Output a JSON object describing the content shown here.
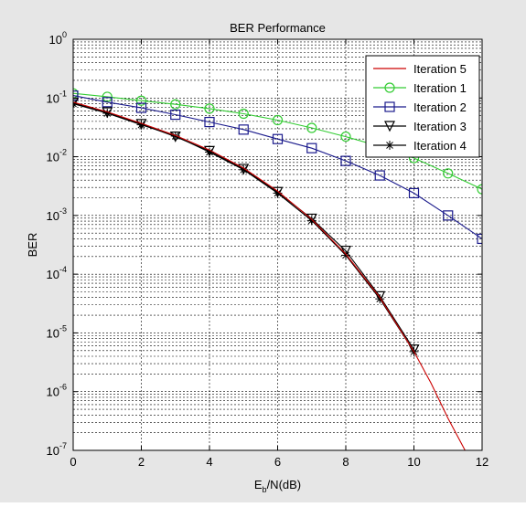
{
  "chart_data": {
    "type": "line",
    "title": "BER Performance",
    "xlabel": "Eb/N(dB)",
    "xlabel_main": "E",
    "xlabel_sub": "b",
    "xlabel_rest": "/N(dB)",
    "ylabel": "BER",
    "xlim": [
      0,
      12
    ],
    "ylim": [
      1e-07,
      1
    ],
    "yscale": "log",
    "grid": true,
    "legend_position": "top-right",
    "x_ticks": [
      "0",
      "2",
      "4",
      "6",
      "8",
      "10",
      "12"
    ],
    "y_tick_base": "10",
    "y_tick_exponents": [
      "0",
      "-1",
      "-2",
      "-3",
      "-4",
      "-5",
      "-6",
      "-7"
    ],
    "colors": {
      "figure_background": "#e6e6e6",
      "axes_background": "#ffffff",
      "iteration_5": "#cc0000",
      "iteration_1": "#33cc33",
      "iteration_2": "#1a1a8c",
      "iteration_3": "#000000",
      "iteration_4": "#000000"
    },
    "series": [
      {
        "name": "Iteration 5",
        "marker": "none",
        "x": [
          0,
          1,
          2,
          3,
          4,
          5,
          6,
          7,
          8,
          9,
          10,
          10.5,
          11,
          11.5
        ],
        "y": [
          0.085,
          0.058,
          0.037,
          0.023,
          0.013,
          0.0064,
          0.0026,
          0.00086,
          0.00022,
          4e-05,
          4.8e-06,
          1.4e-06,
          3.5e-07,
          1e-07
        ]
      },
      {
        "name": "Iteration 1",
        "marker": "circle",
        "x": [
          0,
          1,
          2,
          3,
          4,
          5,
          6,
          7,
          8,
          9,
          10,
          11,
          12
        ],
        "y": [
          0.12,
          0.105,
          0.09,
          0.078,
          0.066,
          0.054,
          0.042,
          0.031,
          0.022,
          0.015,
          0.0095,
          0.0052,
          0.0028
        ]
      },
      {
        "name": "Iteration 2",
        "marker": "square",
        "x": [
          0,
          1,
          2,
          3,
          4,
          5,
          6,
          7,
          8,
          9,
          10,
          11,
          12
        ],
        "y": [
          0.11,
          0.085,
          0.068,
          0.052,
          0.039,
          0.029,
          0.02,
          0.014,
          0.0085,
          0.0048,
          0.0024,
          0.001,
          0.0004
        ]
      },
      {
        "name": "Iteration 3",
        "marker": "triangle-down",
        "x": [
          0,
          1,
          2,
          3,
          4,
          5,
          6,
          7,
          8,
          9,
          10
        ],
        "y": [
          0.082,
          0.057,
          0.036,
          0.022,
          0.0125,
          0.0062,
          0.0025,
          0.00088,
          0.00025,
          4.2e-05,
          5.2e-06
        ]
      },
      {
        "name": "Iteration 4",
        "marker": "star",
        "x": [
          0,
          1,
          2,
          3,
          4,
          5,
          6,
          7,
          8,
          9,
          10
        ],
        "y": [
          0.08,
          0.055,
          0.035,
          0.0225,
          0.012,
          0.006,
          0.0024,
          0.00082,
          0.00021,
          3.8e-05,
          4.8e-06
        ]
      }
    ]
  }
}
